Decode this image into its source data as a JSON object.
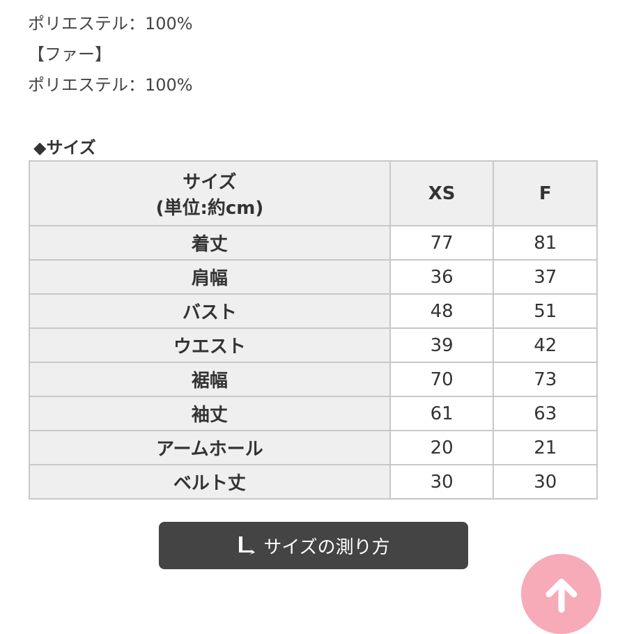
{
  "material_lines": [
    "ポリエステル：100%",
    "【ファー】",
    "ポリエステル：100%"
  ],
  "section_title": "◆サイズ",
  "table": {
    "header": {
      "label_line1": "サイズ",
      "label_line2": "(単位:約cm)",
      "sizes": [
        "XS",
        "F"
      ]
    },
    "rows": [
      {
        "label": "着丈",
        "values": [
          "77",
          "81"
        ]
      },
      {
        "label": "肩幅",
        "values": [
          "36",
          "37"
        ]
      },
      {
        "label": "バスト",
        "values": [
          "48",
          "51"
        ]
      },
      {
        "label": "ウエスト",
        "values": [
          "39",
          "42"
        ]
      },
      {
        "label": "裾幅",
        "values": [
          "70",
          "73"
        ]
      },
      {
        "label": "袖丈",
        "values": [
          "61",
          "63"
        ]
      },
      {
        "label": "アームホール",
        "values": [
          "20",
          "21"
        ]
      },
      {
        "label": "ベルト丈",
        "values": [
          "30",
          "30"
        ]
      }
    ]
  },
  "measure_button": {
    "label": "サイズの測り方",
    "icon": "ruler-icon"
  },
  "scroll_top": {
    "icon": "arrow-up-icon",
    "color": "#f7aab8"
  }
}
